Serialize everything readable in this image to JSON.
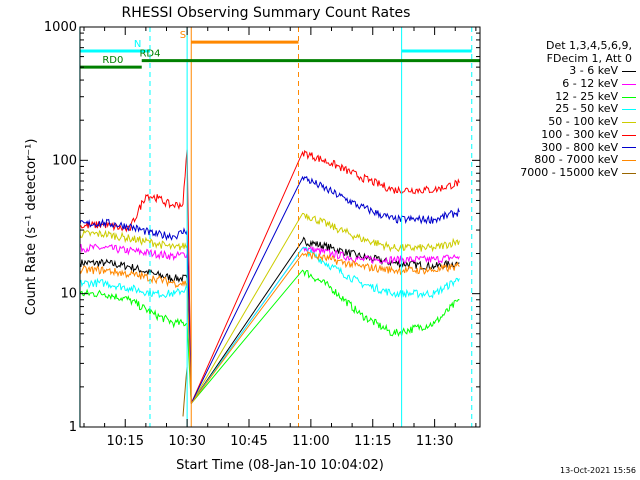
{
  "chart_data": {
    "type": "line",
    "title": "RHESSI Observing Summary Count Rates",
    "xlabel": "Start Time (08-Jan-10 10:04:02)",
    "ylabel": "Count Rate (s⁻¹ detector⁻¹)",
    "yscale": "log",
    "ylim": [
      1,
      1000
    ],
    "y_ticks": [
      {
        "value": 1,
        "label": "1"
      },
      {
        "value": 10,
        "label": "10"
      },
      {
        "value": 100,
        "label": "100"
      },
      {
        "value": 1000,
        "label": "1000"
      }
    ],
    "xlim": [
      "10:04:02",
      "11:41:00"
    ],
    "x_ticks": [
      {
        "value": "10:15",
        "label": "10:15"
      },
      {
        "value": "10:30",
        "label": "10:30"
      },
      {
        "value": "10:45",
        "label": "10:45"
      },
      {
        "value": "11:00",
        "label": "11:00"
      },
      {
        "value": "11:15",
        "label": "11:15"
      },
      {
        "value": "11:30",
        "label": "11:30"
      }
    ],
    "legend_position": "right",
    "legend_header": [
      "Det 1,3,4,5,6,9,",
      "FDecim 1, Att 0"
    ],
    "series": [
      {
        "name": "3 - 6 keV",
        "color": "#000000",
        "points": [
          [
            "10:04",
            17
          ],
          [
            "10:10",
            17
          ],
          [
            "10:16",
            16
          ],
          [
            "10:22",
            14
          ],
          [
            "10:27",
            13
          ],
          [
            "10:30",
            13
          ],
          [
            "10:31",
            1.5
          ],
          [
            "10:58",
            25
          ],
          [
            "11:05",
            22
          ],
          [
            "11:12",
            19
          ],
          [
            "11:20",
            17
          ],
          [
            "11:30",
            16
          ],
          [
            "11:36",
            17
          ]
        ]
      },
      {
        "name": "6 - 12 keV",
        "color": "#ff00ff",
        "points": [
          [
            "10:04",
            22
          ],
          [
            "10:10",
            22
          ],
          [
            "10:16",
            21
          ],
          [
            "10:22",
            20
          ],
          [
            "10:27",
            19
          ],
          [
            "10:30",
            20
          ],
          [
            "10:31",
            1.5
          ],
          [
            "10:58",
            22
          ],
          [
            "11:05",
            20
          ],
          [
            "11:12",
            18
          ],
          [
            "11:20",
            18
          ],
          [
            "11:30",
            18
          ],
          [
            "11:36",
            19
          ]
        ]
      },
      {
        "name": "12 - 25 keV",
        "color": "#00ff00",
        "points": [
          [
            "10:04",
            10
          ],
          [
            "10:10",
            10
          ],
          [
            "10:16",
            9
          ],
          [
            "10:22",
            7
          ],
          [
            "10:27",
            6
          ],
          [
            "10:30",
            6
          ],
          [
            "10:31",
            1.5
          ],
          [
            "10:58",
            15
          ],
          [
            "11:05",
            11
          ],
          [
            "11:12",
            7
          ],
          [
            "11:20",
            5
          ],
          [
            "11:30",
            6
          ],
          [
            "11:36",
            9
          ]
        ]
      },
      {
        "name": "25 - 50 keV",
        "color": "#00ffff",
        "points": [
          [
            "10:04",
            12
          ],
          [
            "10:10",
            12
          ],
          [
            "10:16",
            11
          ],
          [
            "10:22",
            10
          ],
          [
            "10:27",
            10
          ],
          [
            "10:30",
            11
          ],
          [
            "10:31",
            1.5
          ],
          [
            "10:58",
            22
          ],
          [
            "11:05",
            16
          ],
          [
            "11:12",
            12
          ],
          [
            "11:20",
            10
          ],
          [
            "11:30",
            10
          ],
          [
            "11:36",
            13
          ]
        ]
      },
      {
        "name": "50 - 100 keV",
        "color": "#cccc00",
        "points": [
          [
            "10:04",
            28
          ],
          [
            "10:10",
            28
          ],
          [
            "10:16",
            26
          ],
          [
            "10:22",
            24
          ],
          [
            "10:27",
            22
          ],
          [
            "10:30",
            23
          ],
          [
            "10:31",
            1.5
          ],
          [
            "10:58",
            40
          ],
          [
            "11:05",
            32
          ],
          [
            "11:12",
            26
          ],
          [
            "11:20",
            22
          ],
          [
            "11:30",
            22
          ],
          [
            "11:36",
            25
          ]
        ]
      },
      {
        "name": "100 - 300 keV",
        "color": "#ff0000",
        "points": [
          [
            "10:04",
            32
          ],
          [
            "10:10",
            33
          ],
          [
            "10:16",
            30
          ],
          [
            "10:20",
            55
          ],
          [
            "10:23",
            52
          ],
          [
            "10:26",
            46
          ],
          [
            "10:29",
            47
          ],
          [
            "10:30",
            120
          ],
          [
            "10:31",
            1.5
          ],
          [
            "10:58",
            115
          ],
          [
            "11:05",
            95
          ],
          [
            "11:12",
            75
          ],
          [
            "11:20",
            60
          ],
          [
            "11:30",
            60
          ],
          [
            "11:36",
            68
          ]
        ]
      },
      {
        "name": "300 - 800 keV",
        "color": "#0000cc",
        "points": [
          [
            "10:04",
            33
          ],
          [
            "10:10",
            34
          ],
          [
            "10:16",
            32
          ],
          [
            "10:22",
            28
          ],
          [
            "10:27",
            27
          ],
          [
            "10:30",
            30
          ],
          [
            "10:31",
            1.5
          ],
          [
            "10:58",
            75
          ],
          [
            "11:05",
            58
          ],
          [
            "11:12",
            45
          ],
          [
            "11:20",
            36
          ],
          [
            "11:30",
            36
          ],
          [
            "11:36",
            41
          ]
        ]
      },
      {
        "name": "800 - 7000 keV",
        "color": "#ff8800",
        "points": [
          [
            "10:04",
            15
          ],
          [
            "10:10",
            15
          ],
          [
            "10:16",
            14
          ],
          [
            "10:22",
            13
          ],
          [
            "10:27",
            12
          ],
          [
            "10:30",
            12
          ],
          [
            "10:31",
            1.5
          ],
          [
            "10:58",
            20
          ],
          [
            "11:05",
            18
          ],
          [
            "11:12",
            16
          ],
          [
            "11:20",
            15
          ],
          [
            "11:30",
            15
          ],
          [
            "11:36",
            16
          ]
        ]
      },
      {
        "name": "7000 - 15000 keV",
        "color": "#996600",
        "points": [
          [
            "10:29",
            1.2
          ],
          [
            "10:30",
            2.8
          ]
        ]
      }
    ],
    "attenuator_lines": [
      {
        "time": "10:30",
        "color": "#00ffff",
        "style": "solid"
      },
      {
        "time": "10:31",
        "color": "#ff8800",
        "style": "solid"
      }
    ],
    "event_lines": [
      {
        "time": "10:04",
        "color": "#00ffff",
        "style": "solid"
      },
      {
        "time": "10:21",
        "color": "#00ffff",
        "style": "dashed"
      },
      {
        "time": "10:57",
        "color": "#ff8800",
        "style": "dashed"
      },
      {
        "time": "11:22",
        "color": "#00ffff",
        "style": "solid"
      },
      {
        "time": "11:39",
        "color": "#00ffff",
        "style": "dashed"
      }
    ],
    "flag_bars": [
      {
        "label": "N",
        "color": "#00ffff",
        "segments": [
          [
            "10:04",
            "10:21"
          ],
          [
            "11:22",
            "11:39"
          ]
        ],
        "y": 660,
        "label_at": "10:18"
      },
      {
        "label": "S",
        "color": "#ff8800",
        "segments": [
          [
            "10:31",
            "10:57"
          ]
        ],
        "y": 770,
        "label_at": "10:29"
      },
      {
        "label": "RD0",
        "color": "#008000",
        "segments": [
          [
            "10:04",
            "10:19"
          ]
        ],
        "y": 500,
        "label_at": "10:12"
      },
      {
        "label": "RD4",
        "color": "#008000",
        "segments": [
          [
            "10:19",
            "11:41"
          ]
        ],
        "y": 560,
        "label_at": "10:21"
      }
    ]
  },
  "footer": {
    "date": "13-Oct-2021 15:56"
  }
}
